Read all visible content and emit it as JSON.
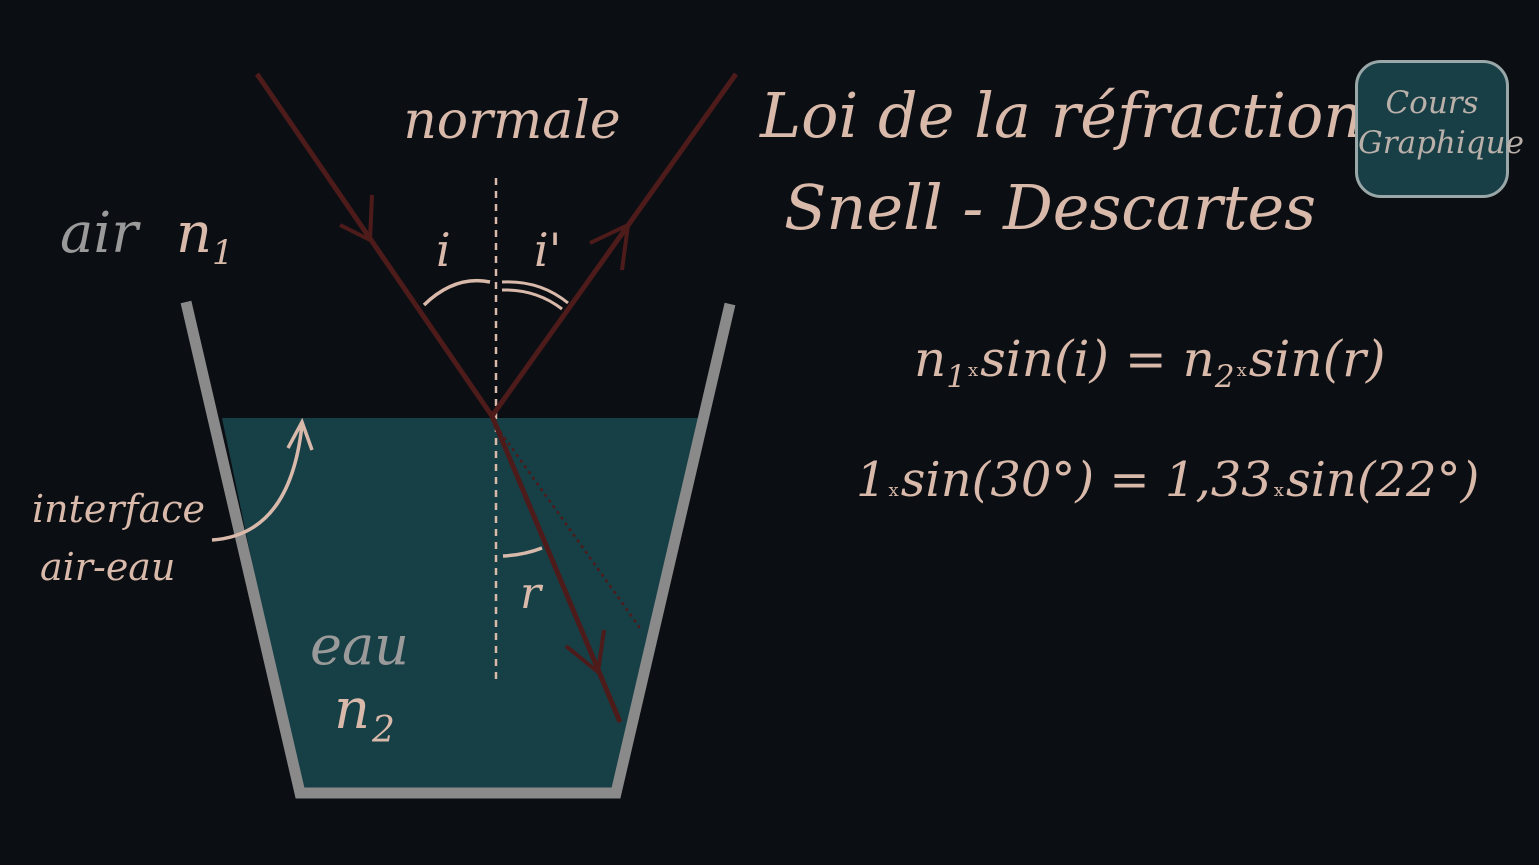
{
  "title": {
    "line1": "Loi de la réfraction de",
    "line2": "Snell - Descartes"
  },
  "logo": {
    "line1": "Cours",
    "line2": "Graphique"
  },
  "labels": {
    "normal": "normale",
    "air": "air",
    "n1": "n",
    "n1_sub": "1",
    "water": "eau",
    "n2": "n",
    "n2_sub": "2",
    "interface_line1": "interface",
    "interface_line2": "air-eau",
    "angle_i": "i",
    "angle_i_prime": "i'",
    "angle_r": "r"
  },
  "formula_general": {
    "n1": "n",
    "n1_sub": "1",
    "times": "x",
    "left_func": "sin(i)",
    "equals": "=",
    "n2": "n",
    "n2_sub": "2",
    "right_func": "sin(r)"
  },
  "formula_numeric": {
    "n1_value": "1",
    "times": "x",
    "left_func": "sin",
    "open": "(",
    "incidence_angle": "30°",
    "close": ")",
    "equals": "=",
    "n2_value": "1,33",
    "right_func": "sin",
    "refraction_angle": "22°"
  },
  "physics": {
    "incidence_angle_deg": 30,
    "refraction_angle_deg": 22,
    "n_air": 1,
    "n_water": 1.33
  },
  "colors": {
    "background": "#0b0e13",
    "text": "#d8b9aa",
    "label_grey": "#9a9a9a",
    "ray": "#4e1b1b",
    "water": "#173f46",
    "glass": "#8a8a8a",
    "logo_bg": "#183e46"
  }
}
